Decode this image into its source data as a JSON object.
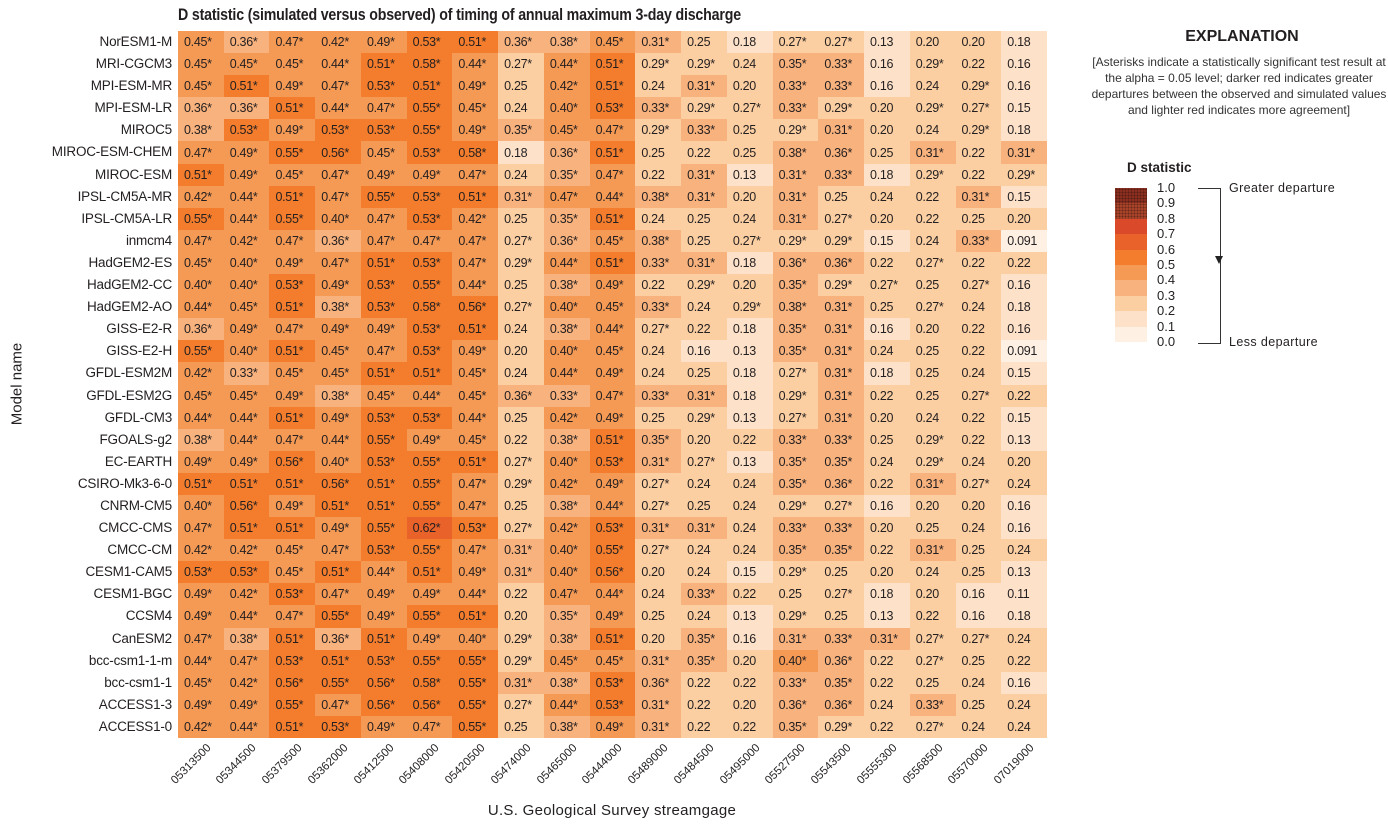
{
  "chart_data": {
    "type": "heatmap",
    "title": "D statistic (simulated versus observed) of timing of annual maximum 3-day discharge",
    "xlabel": "U.S. Geological Survey streamgage",
    "ylabel": "Model name",
    "x": [
      "05313500",
      "05344500",
      "05379500",
      "05362000",
      "05412500",
      "05408000",
      "05420500",
      "05474000",
      "05465000",
      "05444000",
      "05489000",
      "05484500",
      "05495000",
      "05527500",
      "05543500",
      "05555300",
      "05568500",
      "05570000",
      "07019000"
    ],
    "columns": [
      "05313500",
      "05344500",
      "05379500",
      "05362000",
      "05412500",
      "05408000",
      "05420500",
      "05474000",
      "05465000",
      "05444000",
      "05489000",
      "05484500",
      "05495000",
      "05527500",
      "05543500",
      "05555300",
      "05568500",
      "05570000",
      "07019000"
    ],
    "rows": [
      "NorESM1-M",
      "MRI-CGCM3",
      "MPI-ESM-MR",
      "MPI-ESM-LR",
      "MIROC5",
      "MIROC-ESM-CHEM",
      "MIROC-ESM",
      "IPSL-CM5A-MR",
      "IPSL-CM5A-LR",
      "inmcm4",
      "HadGEM2-ES",
      "HadGEM2-CC",
      "HadGEM2-AO",
      "GISS-E2-R",
      "GISS-E2-H",
      "GFDL-ESM2M",
      "GFDL-ESM2G",
      "GFDL-CM3",
      "FGOALS-g2",
      "EC-EARTH",
      "CSIRO-Mk3-6-0",
      "CNRM-CM5",
      "CMCC-CMS",
      "CMCC-CM",
      "CESM1-CAM5",
      "CESM1-BGC",
      "CCSM4",
      "CanESM2",
      "bcc-csm1-1-m",
      "bcc-csm1-1",
      "ACCESS1-3",
      "ACCESS1-0"
    ],
    "cells": [
      [
        "0.45*",
        "0.36*",
        "0.47*",
        "0.42*",
        "0.49*",
        "0.53*",
        "0.51*",
        "0.36*",
        "0.38*",
        "0.45*",
        "0.31*",
        "0.25",
        "0.18",
        "0.27*",
        "0.27*",
        "0.13",
        "0.20",
        "0.20",
        "0.18"
      ],
      [
        "0.45*",
        "0.45*",
        "0.45*",
        "0.44*",
        "0.51*",
        "0.58*",
        "0.44*",
        "0.27*",
        "0.44*",
        "0.51*",
        "0.29*",
        "0.29*",
        "0.24",
        "0.35*",
        "0.33*",
        "0.16",
        "0.29*",
        "0.22",
        "0.16"
      ],
      [
        "0.45*",
        "0.51*",
        "0.49*",
        "0.47*",
        "0.53*",
        "0.51*",
        "0.49*",
        "0.25",
        "0.42*",
        "0.51*",
        "0.24",
        "0.31*",
        "0.20",
        "0.33*",
        "0.33*",
        "0.16",
        "0.24",
        "0.29*",
        "0.16"
      ],
      [
        "0.36*",
        "0.36*",
        "0.51*",
        "0.44*",
        "0.47*",
        "0.55*",
        "0.45*",
        "0.24",
        "0.40*",
        "0.53*",
        "0.33*",
        "0.29*",
        "0.27*",
        "0.33*",
        "0.29*",
        "0.20",
        "0.29*",
        "0.27*",
        "0.15"
      ],
      [
        "0.38*",
        "0.53*",
        "0.49*",
        "0.53*",
        "0.53*",
        "0.55*",
        "0.49*",
        "0.35*",
        "0.45*",
        "0.47*",
        "0.29*",
        "0.33*",
        "0.25",
        "0.29*",
        "0.31*",
        "0.20",
        "0.24",
        "0.29*",
        "0.18"
      ],
      [
        "0.47*",
        "0.49*",
        "0.55*",
        "0.56*",
        "0.45*",
        "0.53*",
        "0.58*",
        "0.18",
        "0.36*",
        "0.51*",
        "0.25",
        "0.22",
        "0.25",
        "0.38*",
        "0.36*",
        "0.25",
        "0.31*",
        "0.22",
        "0.31*"
      ],
      [
        "0.51*",
        "0.49*",
        "0.45*",
        "0.47*",
        "0.49*",
        "0.49*",
        "0.47*",
        "0.24",
        "0.35*",
        "0.47*",
        "0.22",
        "0.31*",
        "0.13",
        "0.31*",
        "0.33*",
        "0.18",
        "0.29*",
        "0.22",
        "0.29*"
      ],
      [
        "0.42*",
        "0.44*",
        "0.51*",
        "0.47*",
        "0.55*",
        "0.53*",
        "0.51*",
        "0.31*",
        "0.47*",
        "0.44*",
        "0.38*",
        "0.31*",
        "0.20",
        "0.31*",
        "0.25",
        "0.24",
        "0.22",
        "0.31*",
        "0.15"
      ],
      [
        "0.55*",
        "0.44*",
        "0.55*",
        "0.40*",
        "0.47*",
        "0.53*",
        "0.42*",
        "0.25",
        "0.35*",
        "0.51*",
        "0.24",
        "0.25",
        "0.24",
        "0.31*",
        "0.27*",
        "0.20",
        "0.22",
        "0.25",
        "0.20"
      ],
      [
        "0.47*",
        "0.42*",
        "0.47*",
        "0.36*",
        "0.47*",
        "0.47*",
        "0.47*",
        "0.27*",
        "0.36*",
        "0.45*",
        "0.38*",
        "0.25",
        "0.27*",
        "0.29*",
        "0.29*",
        "0.15",
        "0.24",
        "0.33*",
        "0.091"
      ],
      [
        "0.45*",
        "0.40*",
        "0.49*",
        "0.47*",
        "0.51*",
        "0.53*",
        "0.47*",
        "0.29*",
        "0.44*",
        "0.51*",
        "0.33*",
        "0.31*",
        "0.18",
        "0.36*",
        "0.36*",
        "0.22",
        "0.27*",
        "0.22",
        "0.22"
      ],
      [
        "0.40*",
        "0.40*",
        "0.53*",
        "0.49*",
        "0.53*",
        "0.55*",
        "0.44*",
        "0.25",
        "0.38*",
        "0.49*",
        "0.22",
        "0.29*",
        "0.20",
        "0.35*",
        "0.29*",
        "0.27*",
        "0.25",
        "0.27*",
        "0.16"
      ],
      [
        "0.44*",
        "0.45*",
        "0.51*",
        "0.38*",
        "0.53*",
        "0.58*",
        "0.56*",
        "0.27*",
        "0.40*",
        "0.45*",
        "0.33*",
        "0.24",
        "0.29*",
        "0.38*",
        "0.31*",
        "0.25",
        "0.27*",
        "0.24",
        "0.18"
      ],
      [
        "0.36*",
        "0.49*",
        "0.47*",
        "0.49*",
        "0.49*",
        "0.53*",
        "0.51*",
        "0.24",
        "0.38*",
        "0.44*",
        "0.27*",
        "0.22",
        "0.18",
        "0.35*",
        "0.31*",
        "0.16",
        "0.20",
        "0.22",
        "0.16"
      ],
      [
        "0.55*",
        "0.40*",
        "0.51*",
        "0.45*",
        "0.47*",
        "0.53*",
        "0.49*",
        "0.20",
        "0.40*",
        "0.45*",
        "0.24",
        "0.16",
        "0.13",
        "0.35*",
        "0.31*",
        "0.24",
        "0.25",
        "0.22",
        "0.091"
      ],
      [
        "0.42*",
        "0.33*",
        "0.45*",
        "0.45*",
        "0.51*",
        "0.51*",
        "0.45*",
        "0.24",
        "0.44*",
        "0.49*",
        "0.24",
        "0.25",
        "0.18",
        "0.27*",
        "0.31*",
        "0.18",
        "0.25",
        "0.24",
        "0.15"
      ],
      [
        "0.45*",
        "0.45*",
        "0.49*",
        "0.38*",
        "0.45*",
        "0.44*",
        "0.45*",
        "0.36*",
        "0.33*",
        "0.47*",
        "0.33*",
        "0.31*",
        "0.18",
        "0.29*",
        "0.31*",
        "0.22",
        "0.25",
        "0.27*",
        "0.22"
      ],
      [
        "0.44*",
        "0.44*",
        "0.51*",
        "0.49*",
        "0.53*",
        "0.53*",
        "0.44*",
        "0.25",
        "0.42*",
        "0.49*",
        "0.25",
        "0.29*",
        "0.13",
        "0.27*",
        "0.31*",
        "0.20",
        "0.24",
        "0.22",
        "0.15"
      ],
      [
        "0.38*",
        "0.44*",
        "0.47*",
        "0.44*",
        "0.55*",
        "0.49*",
        "0.45*",
        "0.22",
        "0.38*",
        "0.51*",
        "0.35*",
        "0.20",
        "0.22",
        "0.33*",
        "0.33*",
        "0.25",
        "0.29*",
        "0.22",
        "0.13"
      ],
      [
        "0.49*",
        "0.49*",
        "0.56*",
        "0.40*",
        "0.53*",
        "0.55*",
        "0.51*",
        "0.27*",
        "0.40*",
        "0.53*",
        "0.31*",
        "0.27*",
        "0.13",
        "0.35*",
        "0.35*",
        "0.24",
        "0.29*",
        "0.24",
        "0.20"
      ],
      [
        "0.51*",
        "0.51*",
        "0.51*",
        "0.56*",
        "0.51*",
        "0.55*",
        "0.47*",
        "0.29*",
        "0.42*",
        "0.49*",
        "0.27*",
        "0.24",
        "0.24",
        "0.35*",
        "0.36*",
        "0.22",
        "0.31*",
        "0.27*",
        "0.24"
      ],
      [
        "0.40*",
        "0.56*",
        "0.49*",
        "0.51*",
        "0.51*",
        "0.55*",
        "0.47*",
        "0.25",
        "0.38*",
        "0.44*",
        "0.27*",
        "0.25",
        "0.24",
        "0.29*",
        "0.27*",
        "0.16",
        "0.20",
        "0.20",
        "0.16"
      ],
      [
        "0.47*",
        "0.51*",
        "0.51*",
        "0.49*",
        "0.55*",
        "0.62*",
        "0.53*",
        "0.27*",
        "0.42*",
        "0.53*",
        "0.31*",
        "0.31*",
        "0.24",
        "0.33*",
        "0.33*",
        "0.20",
        "0.25",
        "0.24",
        "0.16"
      ],
      [
        "0.42*",
        "0.42*",
        "0.45*",
        "0.47*",
        "0.53*",
        "0.55*",
        "0.47*",
        "0.31*",
        "0.40*",
        "0.55*",
        "0.27*",
        "0.24",
        "0.24",
        "0.35*",
        "0.35*",
        "0.22",
        "0.31*",
        "0.25",
        "0.24"
      ],
      [
        "0.53*",
        "0.53*",
        "0.45*",
        "0.51*",
        "0.44*",
        "0.51*",
        "0.49*",
        "0.31*",
        "0.40*",
        "0.56*",
        "0.20",
        "0.24",
        "0.15",
        "0.29*",
        "0.25",
        "0.20",
        "0.24",
        "0.25",
        "0.13"
      ],
      [
        "0.49*",
        "0.42*",
        "0.53*",
        "0.47*",
        "0.49*",
        "0.49*",
        "0.44*",
        "0.22",
        "0.47*",
        "0.44*",
        "0.24",
        "0.33*",
        "0.22",
        "0.25",
        "0.27*",
        "0.18",
        "0.20",
        "0.16",
        "0.11"
      ],
      [
        "0.49*",
        "0.44*",
        "0.47*",
        "0.55*",
        "0.49*",
        "0.55*",
        "0.51*",
        "0.20",
        "0.35*",
        "0.49*",
        "0.25",
        "0.24",
        "0.13",
        "0.29*",
        "0.25",
        "0.13",
        "0.22",
        "0.16",
        "0.18"
      ],
      [
        "0.47*",
        "0.38*",
        "0.51*",
        "0.36*",
        "0.51*",
        "0.49*",
        "0.40*",
        "0.29*",
        "0.38*",
        "0.51*",
        "0.20",
        "0.35*",
        "0.16",
        "0.31*",
        "0.33*",
        "0.31*",
        "0.27*",
        "0.27*",
        "0.24"
      ],
      [
        "0.44*",
        "0.47*",
        "0.53*",
        "0.51*",
        "0.53*",
        "0.55*",
        "0.55*",
        "0.29*",
        "0.45*",
        "0.45*",
        "0.31*",
        "0.35*",
        "0.20",
        "0.40*",
        "0.36*",
        "0.22",
        "0.27*",
        "0.25",
        "0.22"
      ],
      [
        "0.45*",
        "0.42*",
        "0.56*",
        "0.55*",
        "0.56*",
        "0.58*",
        "0.55*",
        "0.31*",
        "0.38*",
        "0.53*",
        "0.36*",
        "0.22",
        "0.22",
        "0.33*",
        "0.35*",
        "0.22",
        "0.25",
        "0.24",
        "0.16"
      ],
      [
        "0.49*",
        "0.49*",
        "0.55*",
        "0.47*",
        "0.56*",
        "0.56*",
        "0.55*",
        "0.27*",
        "0.44*",
        "0.53*",
        "0.31*",
        "0.22",
        "0.20",
        "0.36*",
        "0.36*",
        "0.24",
        "0.33*",
        "0.25",
        "0.24"
      ],
      [
        "0.42*",
        "0.44*",
        "0.51*",
        "0.53*",
        "0.49*",
        "0.47*",
        "0.55*",
        "0.25",
        "0.38*",
        "0.49*",
        "0.31*",
        "0.22",
        "0.22",
        "0.35*",
        "0.29*",
        "0.22",
        "0.27*",
        "0.24",
        "0.24"
      ]
    ],
    "colorscale": {
      "bins": [
        "0.0",
        "0.1",
        "0.2",
        "0.3",
        "0.4",
        "0.5",
        "0.6",
        "0.7",
        "0.8",
        "0.9",
        "1.0"
      ],
      "colors": [
        "#fef1e4",
        "#fde2c9",
        "#fccfa2",
        "#f8b27d",
        "#f59a55",
        "#f37d2c",
        "#e9622a",
        "#d9492a",
        "#a8432a",
        "#8a2f1f"
      ]
    },
    "legend_position": "right"
  },
  "figure": {
    "title": "D statistic (simulated versus observed) of timing of annual maximum 3-day discharge",
    "xlabel": "U.S. Geological Survey streamgage",
    "ylabel": "Model name"
  },
  "legend": {
    "heading": "EXPLANATION",
    "note": "[Asterisks indicate a statistically significant test result at the alpha = 0.05 level; darker red indicates greater departures between the observed and simulated values and lighter red indicates more agreement]",
    "scale_title": "D statistic",
    "ticks": [
      "1.0",
      "0.9",
      "0.8",
      "0.7",
      "0.6",
      "0.5",
      "0.4",
      "0.3",
      "0.2",
      "0.1",
      "0.0"
    ],
    "high_label": "Greater departure",
    "low_label": "Less departure"
  }
}
